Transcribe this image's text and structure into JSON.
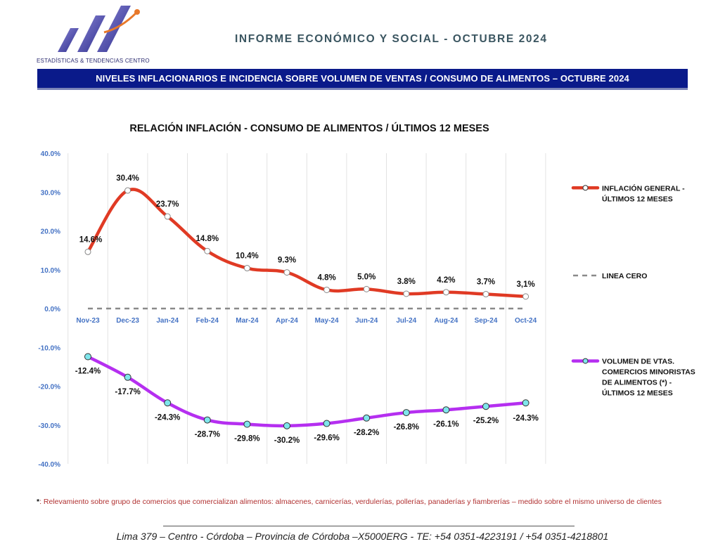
{
  "header": {
    "logo_caption": "ESTADÍSTICAS & TENDENCIAS CENTRO",
    "report_title": "INFORME ECONÓMICO Y SOCIAL - OCTUBRE 2024",
    "banner_text": "NIVELES INFLACIONARIOS E INCIDENCIA SOBRE VOLUMEN DE VENTAS / CONSUMO DE ALIMENTOS – OCTUBRE 2024"
  },
  "colors": {
    "banner": "#0a1a8a",
    "inflation_line": "#e03a24",
    "volume_line": "#b52ff0",
    "volume_marker": "#7fe6ec",
    "zero_line": "#8a8a8a",
    "axis_text": "#4472c4"
  },
  "chart_data": {
    "type": "line",
    "title": "RELACIÓN INFLACIÓN - CONSUMO DE ALIMENTOS / ÚLTIMOS 12 MESES",
    "categories": [
      "Nov-23",
      "Dec-23",
      "Jan-24",
      "Feb-24",
      "Mar-24",
      "Apr-24",
      "May-24",
      "Jun-24",
      "Jul-24",
      "Aug-24",
      "Sep-24",
      "Oct-24"
    ],
    "ylim": [
      -40,
      40
    ],
    "yticks": [
      {
        "value": 40,
        "label": "40.0%"
      },
      {
        "value": 30,
        "label": "30.0%"
      },
      {
        "value": 20,
        "label": "20.0%"
      },
      {
        "value": 10,
        "label": "10.0%"
      },
      {
        "value": 0,
        "label": "0.0%"
      },
      {
        "value": -10,
        "label": "-10.0%"
      },
      {
        "value": -20,
        "label": "-20.0%"
      },
      {
        "value": -30,
        "label": "-30.0%"
      },
      {
        "value": -40,
        "label": "-40.0%"
      }
    ],
    "series": [
      {
        "name": "INFLACIÓN GENERAL - ÚLTIMOS 12 MESES",
        "legend_lines": [
          "INFLACIÓN GENERAL -",
          "ÚLTIMOS 12 MESES"
        ],
        "values": [
          14.6,
          30.4,
          23.7,
          14.8,
          10.4,
          9.3,
          4.8,
          5.0,
          3.8,
          4.2,
          3.7,
          3.1
        ],
        "labels": [
          "14.6%",
          "30.4%",
          "23.7%",
          "14.8%",
          "10.4%",
          "9.3%",
          "4.8%",
          "5.0%",
          "3.8%",
          "4.2%",
          "3.7%",
          "3,1%"
        ]
      },
      {
        "name": "LINEA CERO",
        "legend_lines": [
          "LINEA CERO"
        ],
        "values": [
          0,
          0,
          0,
          0,
          0,
          0,
          0,
          0,
          0,
          0,
          0,
          0
        ]
      },
      {
        "name": "VOLUMEN DE VTAS. COMERCIOS MINORISTAS DE ALIMENTOS (*) - ÚLTIMOS 12 MESES",
        "legend_lines": [
          "VOLUMEN  DE VTAS.",
          "COMERCIOS MINORISTAS",
          "DE ALIMENTOS (*) -",
          "ÚLTIMOS 12 MESES"
        ],
        "values": [
          -12.4,
          -17.7,
          -24.3,
          -28.7,
          -29.8,
          -30.2,
          -29.6,
          -28.2,
          -26.8,
          -26.1,
          -25.2,
          -24.3
        ],
        "labels": [
          "-12.4%",
          "-17.7%",
          "-24.3%",
          "-28.7%",
          "-29.8%",
          "-30.2%",
          "-29.6%",
          "-28.2%",
          "-26.8%",
          "-26.1%",
          "-25.2%",
          "-24.3%"
        ]
      }
    ]
  },
  "footnote": {
    "marker": "*",
    "text": ": Relevamiento sobre grupo de comercios que comercializan alimentos: almacenes, carnicerías, verdulerías, pollerías, panaderías y fiambrerías – medido sobre el mismo universo de clientes"
  },
  "footer": {
    "address": "Lima 379 – Centro - Córdoba – Provincia de Córdoba –X5000ERG - TE: +54 0351-4223191 / +54 0351-4218801"
  }
}
